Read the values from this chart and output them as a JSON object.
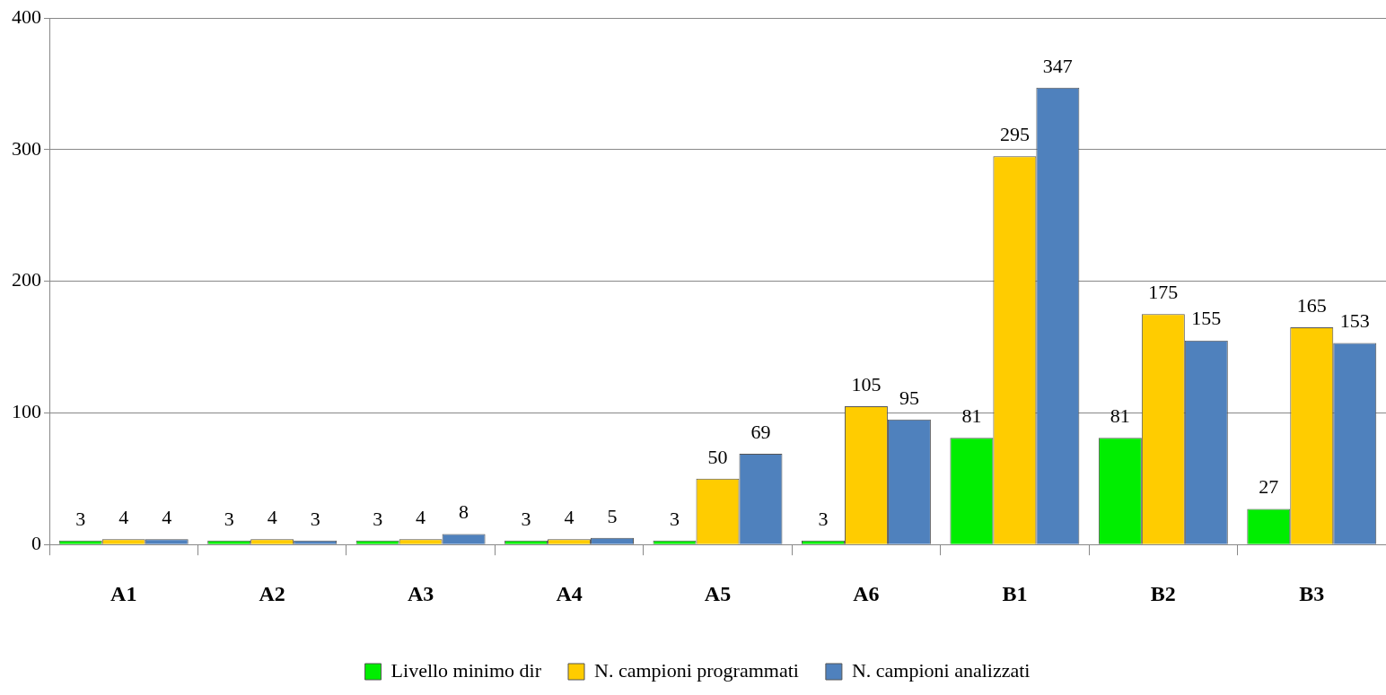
{
  "chart_data": {
    "type": "bar",
    "categories": [
      "A1",
      "A2",
      "A3",
      "A4",
      "A5",
      "A6",
      "B1",
      "B2",
      "B3"
    ],
    "series": [
      {
        "name": "Livello minimo dir",
        "color": "#00ee00",
        "values": [
          3,
          3,
          3,
          3,
          3,
          3,
          81,
          81,
          27
        ]
      },
      {
        "name": "N. campioni programmati",
        "color": "#ffcc00",
        "values": [
          4,
          4,
          4,
          4,
          50,
          105,
          295,
          175,
          165
        ]
      },
      {
        "name": "N. campioni analizzati",
        "color": "#4f81bd",
        "values": [
          4,
          3,
          8,
          5,
          69,
          95,
          347,
          155,
          153
        ]
      }
    ],
    "ylim": [
      0,
      400
    ],
    "yticks": [
      0,
      100,
      200,
      300,
      400
    ],
    "grid": "y",
    "legend": "bottom",
    "data_labels": true
  }
}
